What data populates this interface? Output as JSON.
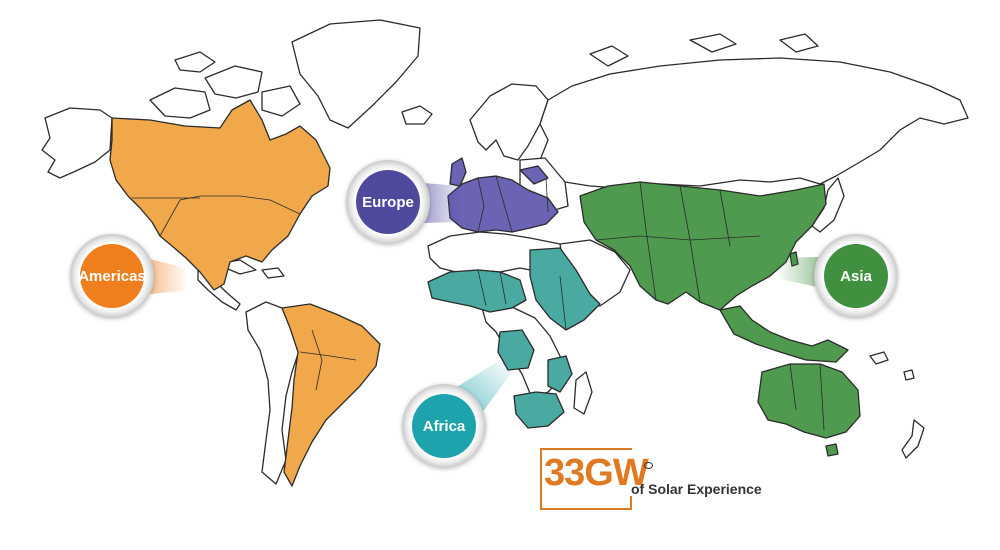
{
  "regions": [
    {
      "id": "americas",
      "label": "Americas",
      "color": "#f0a84b",
      "bubble": "#ee7f1f"
    },
    {
      "id": "europe",
      "label": "Europe",
      "color": "#6b63b3",
      "bubble": "#4f4a9e"
    },
    {
      "id": "africa",
      "label": "Africa",
      "color": "#4aa9a0",
      "bubble": "#1aa3ab"
    },
    {
      "id": "asia",
      "label": "Asia",
      "color": "#4f9a4f",
      "bubble": "#3f9040"
    }
  ],
  "brand": {
    "figure": "33GW",
    "tagline": "of Solar Experience",
    "accent": "#e07a22"
  }
}
